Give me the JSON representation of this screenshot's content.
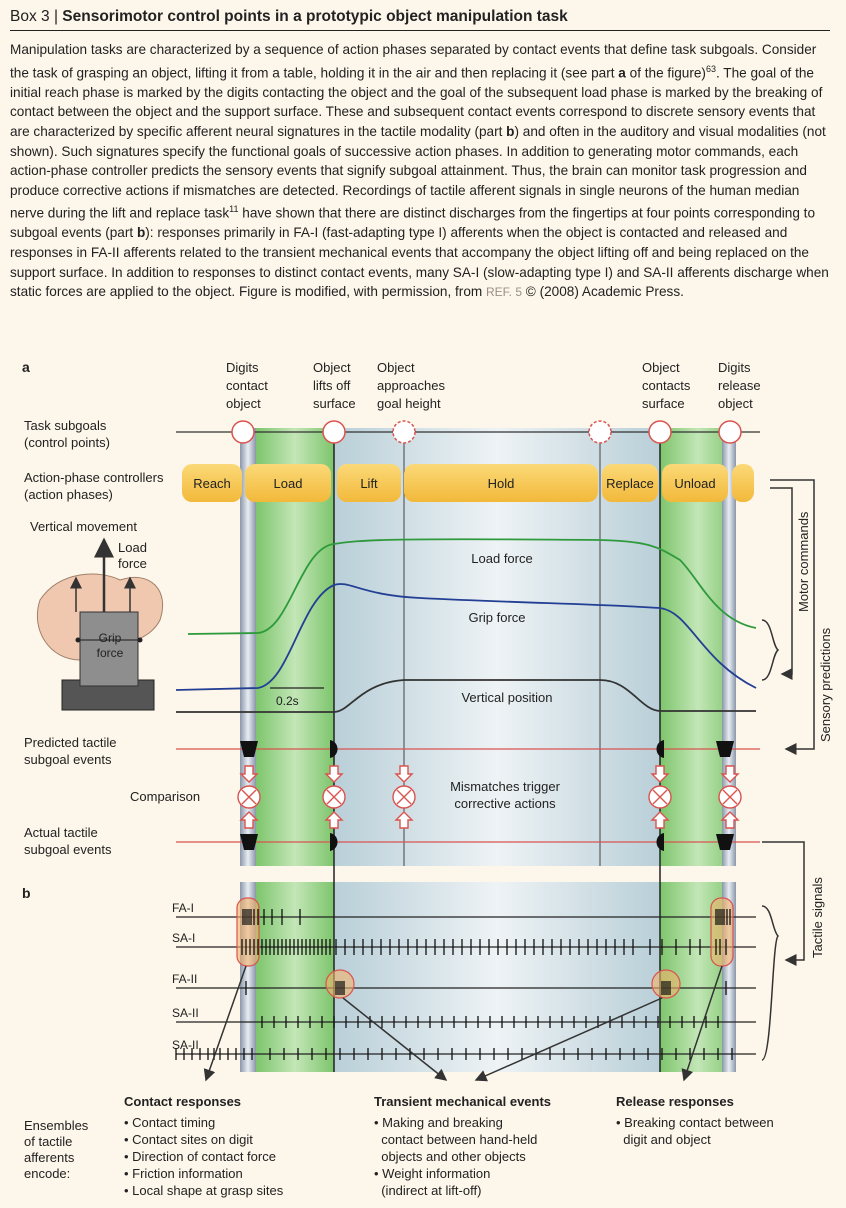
{
  "box": {
    "prefix": "Box 3 | ",
    "title": "Sensorimotor control points in a prototypic object manipulation task"
  },
  "intro": {
    "p1": "Manipulation tasks are characterized by a sequence of action phases separated by contact events that define task subgoals. Consider the task of grasping an object, lifting it from a table, holding it in the air and then replacing it (see part ",
    "a": "a",
    "p2": " of the figure)",
    "sup63": "63",
    "p3": ". The goal of the initial reach phase is marked by the digits contacting the object and the goal of the subsequent load phase is marked by the breaking of contact between the object and the support surface. These and subsequent contact events correspond to discrete sensory events that are characterized by specific afferent neural signatures in the tactile modality (part ",
    "b1": "b",
    "p4": ") and often in the auditory and visual modalities (not shown). Such signatures specify the functional goals of successive action phases. In addition to generating motor commands, each action-phase controller predicts the sensory events that signify subgoal attainment. Thus, the brain can monitor task progression and produce corrective actions if mismatches are detected. Recordings of tactile afferent signals in single neurons of the human median nerve during the lift and replace task",
    "sup11": "11",
    "p5": " have shown that there are distinct discharges from the fingertips at four points corresponding to subgoal events (part ",
    "b2": "b",
    "p6": "): responses primarily in FA-I (fast-adapting type I) afferents when the object is contacted and released and responses in FA-II afferents related to the transient mechanical events that accompany the object lifting off and being replaced on the support surface. In addition to responses to distinct contact events, many SA-I (slow-adapting type I) and SA-II afferents discharge when static forces are applied to the object. Figure is modified, with permission, from ",
    "ref": "REF. 5",
    "p7": " © (2008) Academic Press."
  },
  "panel_a": {
    "label": "a",
    "events": [
      "Digits contact object",
      "Object lifts off surface",
      "Object approaches goal height",
      "Object contacts surface",
      "Digits release object"
    ],
    "event_lines": [
      [
        "Digits",
        "contact",
        "object"
      ],
      [
        "Object",
        "lifts off",
        "surface"
      ],
      [
        "Object",
        "approaches",
        "goal height"
      ],
      [
        "Object",
        "contacts",
        "surface"
      ],
      [
        "Digits",
        "release",
        "object"
      ]
    ],
    "task_subgoals": [
      "Task subgoals",
      "(control points)"
    ],
    "controllers_label": [
      "Action-phase controllers",
      "(action phases)"
    ],
    "phases": [
      "Reach",
      "Load",
      "Lift",
      "Hold",
      "Replace",
      "Unload"
    ],
    "vertical_movement": "Vertical movement",
    "load_force_hand": [
      "Load",
      "force"
    ],
    "grip_force_hand": [
      "Grip",
      "force"
    ],
    "traces": {
      "load": "Load force",
      "grip": "Grip force",
      "position": "Vertical position"
    },
    "scale": "0.2s",
    "predicted": [
      "Predicted tactile",
      "subgoal events"
    ],
    "comparison": "Comparison",
    "mismatch": [
      "Mismatches trigger",
      "corrective actions"
    ],
    "actual": [
      "Actual tactile",
      "subgoal events"
    ],
    "motor_commands": "Motor commands",
    "sensory_predictions": "Sensory predictions"
  },
  "panel_b": {
    "label": "b",
    "afferents": [
      "FA-I",
      "SA-I",
      "FA-II",
      "SA-II",
      "SA-II"
    ],
    "tactile_signals": "Tactile signals",
    "ensembles": [
      "Ensembles",
      "of tactile",
      "afferents",
      "encode:"
    ],
    "groups": [
      {
        "title": "Contact responses",
        "items": [
          "• Contact timing",
          "• Contact sites on digit",
          "• Direction of contact force",
          "• Friction information",
          "• Local shape at grasp sites"
        ]
      },
      {
        "title": "Transient mechanical events",
        "items": [
          "• Making and breaking",
          "  contact between hand-held",
          "  objects and other objects",
          "• Weight information",
          "  (indirect at lift-off)"
        ]
      },
      {
        "title": "Release responses",
        "items": [
          "• Breaking contact between",
          "  digit and object"
        ]
      }
    ]
  },
  "colors": {
    "phase_bar": "#f7c74a",
    "green_band": "#a7d99a",
    "blue_band": "#cfe0e6",
    "load_trace": "#2e9a3c",
    "grip_trace": "#233f93",
    "pos_trace": "#333333",
    "event_line": "#d9534f",
    "highlight": "#f4b26a"
  }
}
